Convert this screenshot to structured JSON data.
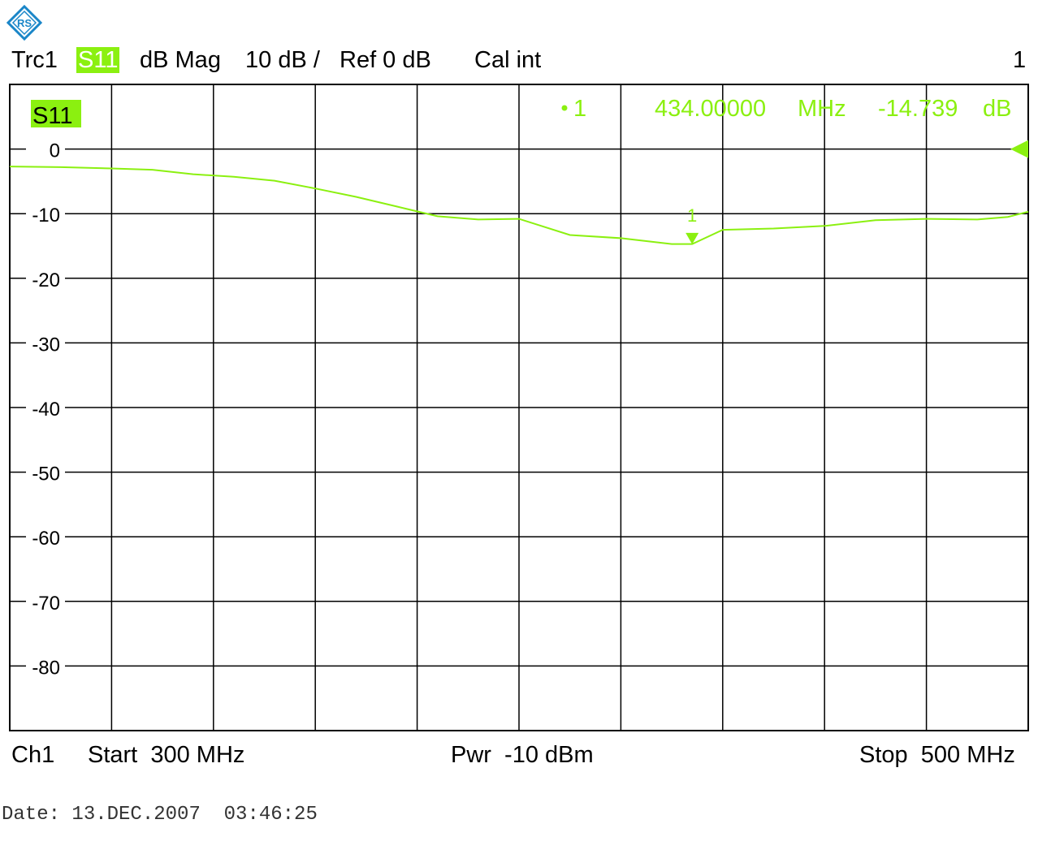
{
  "logo": {
    "icon": "rohde-schwarz-logo-icon",
    "color": "#1a86c8"
  },
  "header": {
    "trace": "Trc1",
    "param": "S11",
    "format": "dB Mag",
    "scale": "10 dB /",
    "ref": "Ref 0 dB",
    "cal": "Cal int",
    "channel_index": "1"
  },
  "trace_badge": "S11",
  "marker_readout": {
    "label": "1",
    "freq": "434.00000",
    "freq_unit": "MHz",
    "value": "-14.739",
    "value_unit": "dB"
  },
  "footer": {
    "channel": "Ch1",
    "start": "Start  300 MHz",
    "power": "Pwr  -10 dBm",
    "stop": "Stop  500 MHz"
  },
  "date": "Date: 13.DEC.2007  03:46:25",
  "colors": {
    "trace": "#8bf010",
    "grid": "#000000",
    "badge_bg": "#8bf010"
  },
  "chart_data": {
    "type": "line",
    "xlim": [
      300,
      500
    ],
    "ylim": [
      -90,
      10
    ],
    "yticks": [
      0,
      -10,
      -20,
      -30,
      -40,
      -50,
      -60,
      -70,
      -80
    ],
    "ytick_labels": [
      "0",
      "-10",
      "-20",
      "-30",
      "-40",
      "-50",
      "-60",
      "-70",
      "-80"
    ],
    "x_divisions": 10,
    "grid": true,
    "reference_level": 0,
    "series": [
      {
        "name": "S11",
        "x": [
          300,
          310,
          320,
          328,
          336,
          344,
          352,
          360,
          368,
          376,
          384,
          392,
          400,
          410,
          420,
          430,
          434,
          440,
          450,
          460,
          470,
          480,
          490,
          496,
          500
        ],
        "y": [
          -2.7,
          -2.8,
          -3.0,
          -3.2,
          -3.9,
          -4.3,
          -4.9,
          -6.1,
          -7.4,
          -8.9,
          -10.4,
          -10.9,
          -10.8,
          -13.3,
          -13.8,
          -14.7,
          -14.7,
          -12.5,
          -12.3,
          -11.9,
          -11.0,
          -10.8,
          -10.9,
          -10.5,
          -9.7
        ]
      }
    ],
    "markers": [
      {
        "label": "1",
        "x": 434.0,
        "y": -14.739
      }
    ]
  }
}
